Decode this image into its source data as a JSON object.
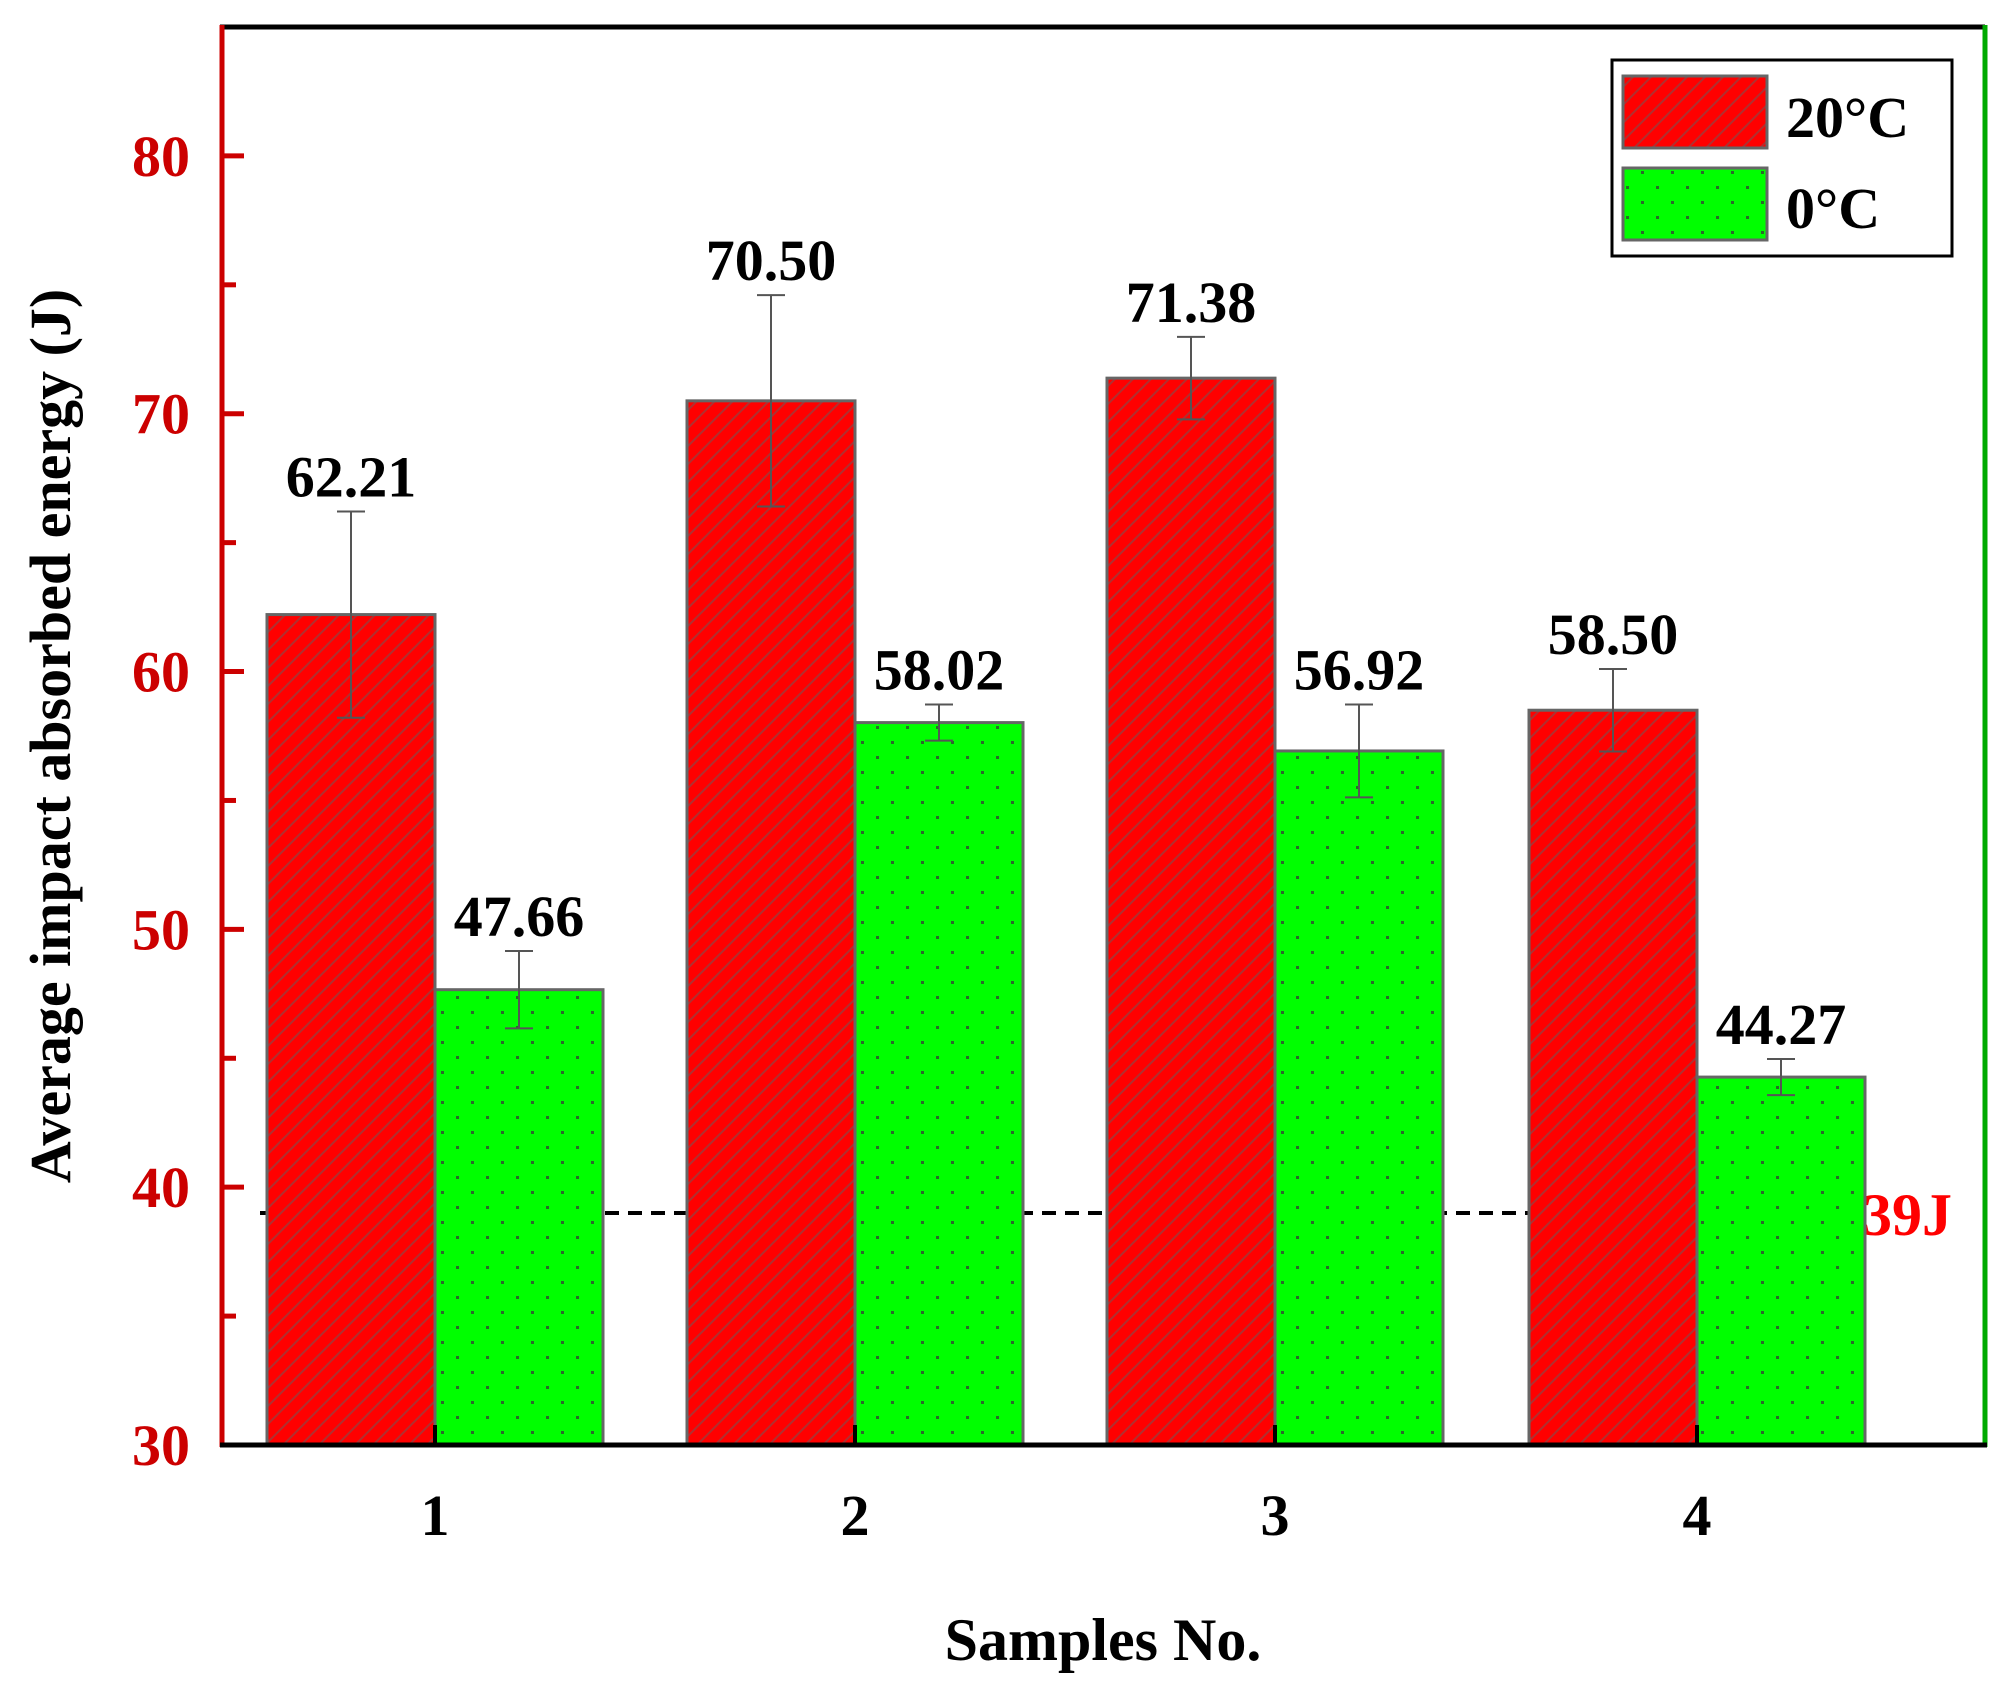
{
  "colors": {
    "series_20": "#ff0000",
    "series_0": "#00ff00",
    "left_axis": "#cc0000",
    "right_axis": "#00aa00",
    "bar_outline": "#666666",
    "hatch": "#b03030",
    "dots": "#2a6a2a",
    "threshold": "#000000",
    "threshold_label": "#ff0000",
    "text": "#000000"
  },
  "chart_data": {
    "type": "bar",
    "title": "",
    "xlabel": "Samples No.",
    "ylabel": "Average impact absorbed energy (J)",
    "ylim": [
      30,
      85
    ],
    "y_ticks": [
      30,
      40,
      50,
      60,
      70,
      80
    ],
    "y_tick_labels": [
      "30",
      "40",
      "50",
      "60",
      "70",
      "80"
    ],
    "categories": [
      "1",
      "2",
      "3",
      "4"
    ],
    "series": [
      {
        "name": "20°C",
        "values": [
          62.21,
          70.5,
          71.38,
          58.5
        ],
        "errors": [
          4.0,
          4.1,
          1.6,
          1.6
        ],
        "labels": [
          "62.21",
          "70.50",
          "71.38",
          "58.50"
        ],
        "pattern": "hatch"
      },
      {
        "name": "0°C",
        "values": [
          47.66,
          58.02,
          56.92,
          44.27
        ],
        "errors": [
          1.5,
          0.7,
          1.8,
          0.7
        ],
        "labels": [
          "47.66",
          "58.02",
          "56.92",
          "44.27"
        ],
        "pattern": "dots"
      }
    ],
    "threshold": {
      "value": 39,
      "label": "39J"
    },
    "legend": {
      "position": "top-right",
      "entries": [
        "20°C",
        "0°C"
      ]
    }
  }
}
